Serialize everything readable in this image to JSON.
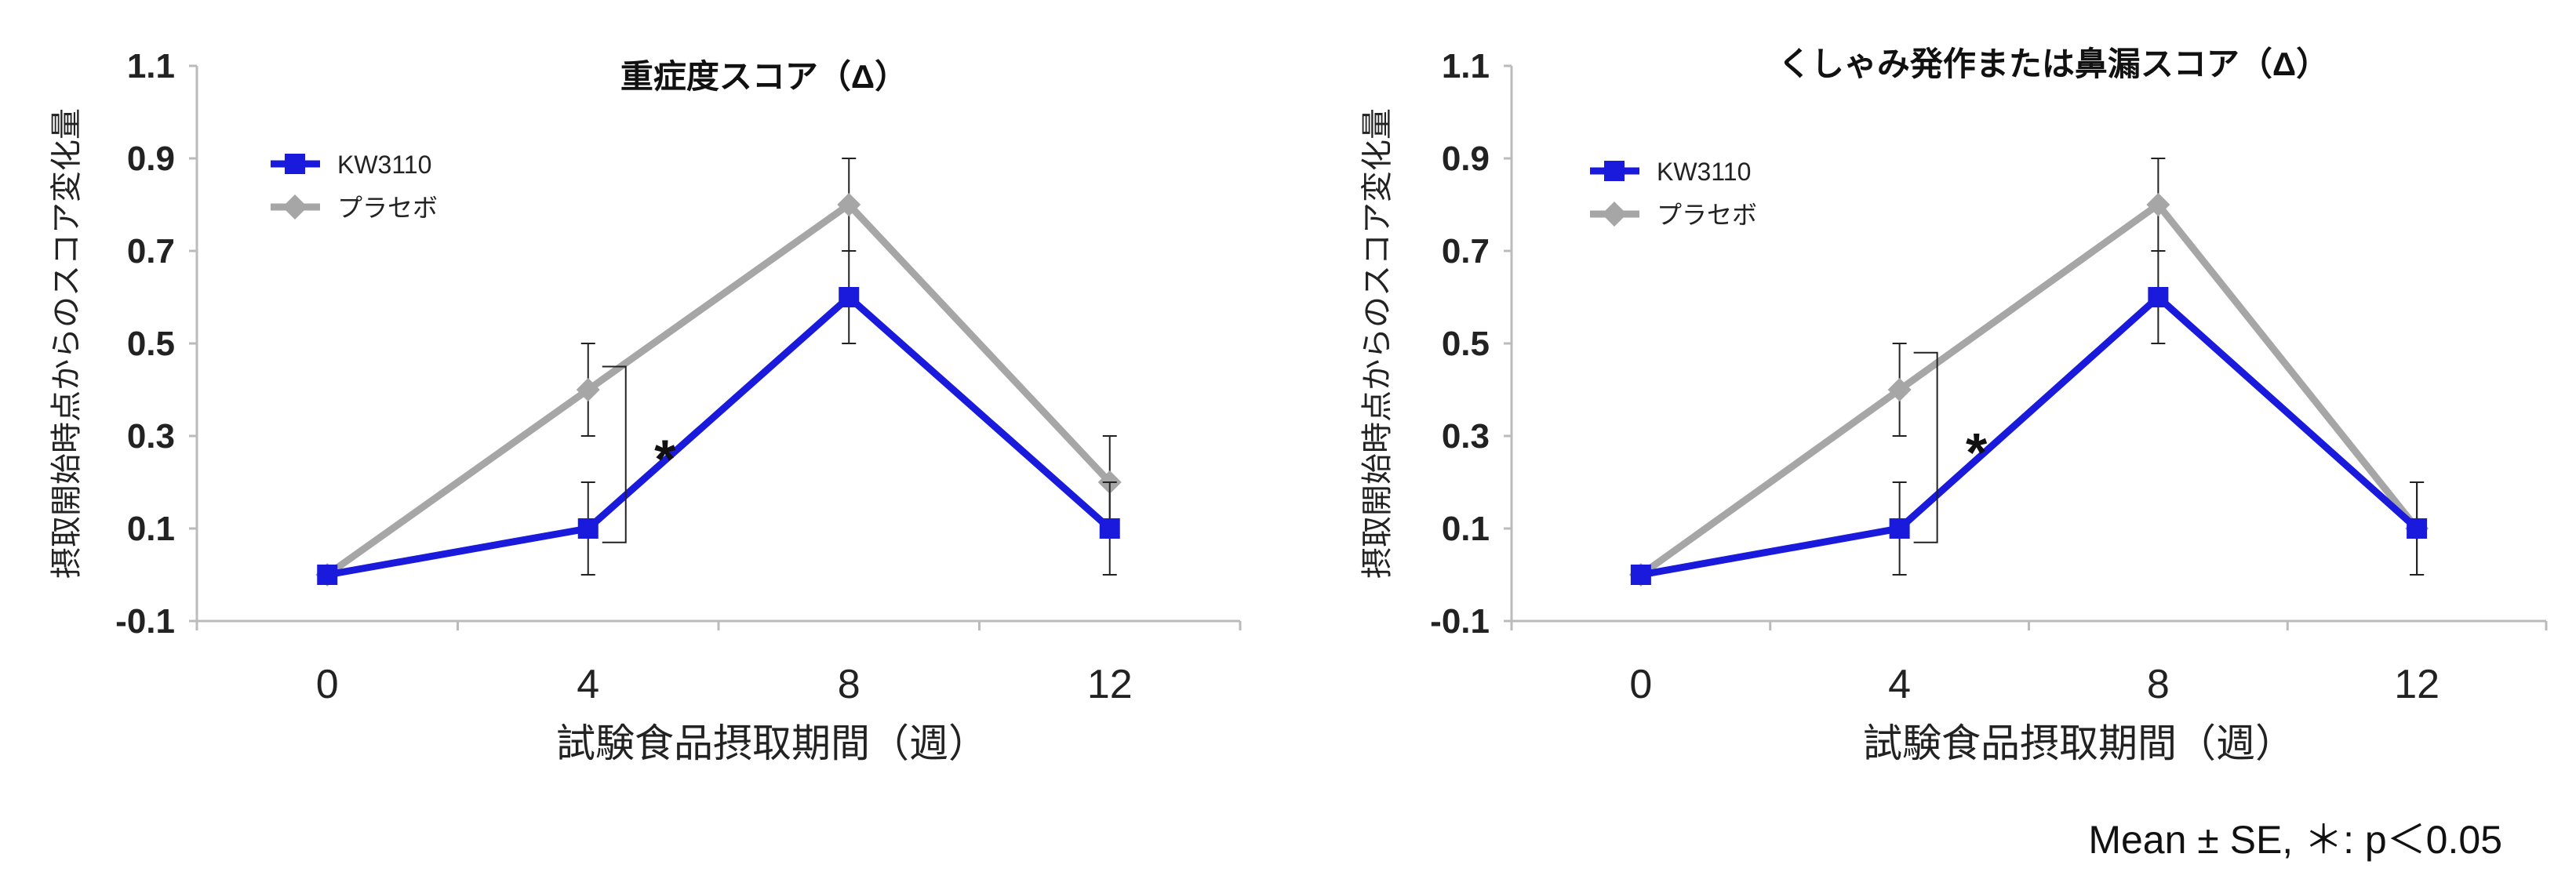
{
  "chart_data": [
    {
      "type": "line",
      "title": "重症度スコア（Δ）",
      "xlabel": "試験食品摂取期間（週）",
      "ylabel": "摂取開始時点からのスコア変化量",
      "categories": [
        "0",
        "4",
        "8",
        "12"
      ],
      "ylim": [
        -0.1,
        1.1
      ],
      "yticks": [
        "1.1",
        "0.9",
        "0.7",
        "0.5",
        "0.3",
        "0.1",
        "-0.1"
      ],
      "legend_position": "top-left",
      "series": [
        {
          "name": "KW3110",
          "color": "#1a1adc",
          "marker": "square",
          "values": [
            0,
            0.1,
            0.6,
            0.1
          ],
          "error": [
            0,
            0.1,
            0.1,
            0.1
          ]
        },
        {
          "name": "プラセボ",
          "color": "#a6a6a6",
          "marker": "diamond",
          "values": [
            0,
            0.4,
            0.8,
            0.2
          ],
          "error": [
            0,
            0.1,
            0.1,
            0.1
          ]
        }
      ],
      "significance": {
        "category_index": 1,
        "range": [
          0.07,
          0.45
        ],
        "label": "*"
      }
    },
    {
      "type": "line",
      "title": "くしゃみ発作または鼻漏スコア（Δ）",
      "xlabel": "試験食品摂取期間（週）",
      "ylabel": "摂取開始時点からのスコア変化量",
      "categories": [
        "0",
        "4",
        "8",
        "12"
      ],
      "ylim": [
        -0.1,
        1.1
      ],
      "yticks": [
        "1.1",
        "0.9",
        "0.7",
        "0.5",
        "0.3",
        "0.1",
        "-0.1"
      ],
      "legend_position": "top-left",
      "series": [
        {
          "name": "KW3110",
          "color": "#1a1adc",
          "marker": "square",
          "values": [
            0,
            0.1,
            0.6,
            0.1
          ],
          "error": [
            0,
            0.1,
            0.1,
            0.1
          ]
        },
        {
          "name": "プラセボ",
          "color": "#a6a6a6",
          "marker": "diamond",
          "values": [
            0,
            0.4,
            0.8,
            0.1
          ],
          "error": [
            0,
            0.1,
            0.1,
            0.1
          ]
        }
      ],
      "significance": {
        "category_index": 1,
        "range": [
          0.07,
          0.48
        ],
        "label": "*"
      }
    }
  ],
  "footnote": "Mean ± SE,  ＊: p＜0.05"
}
